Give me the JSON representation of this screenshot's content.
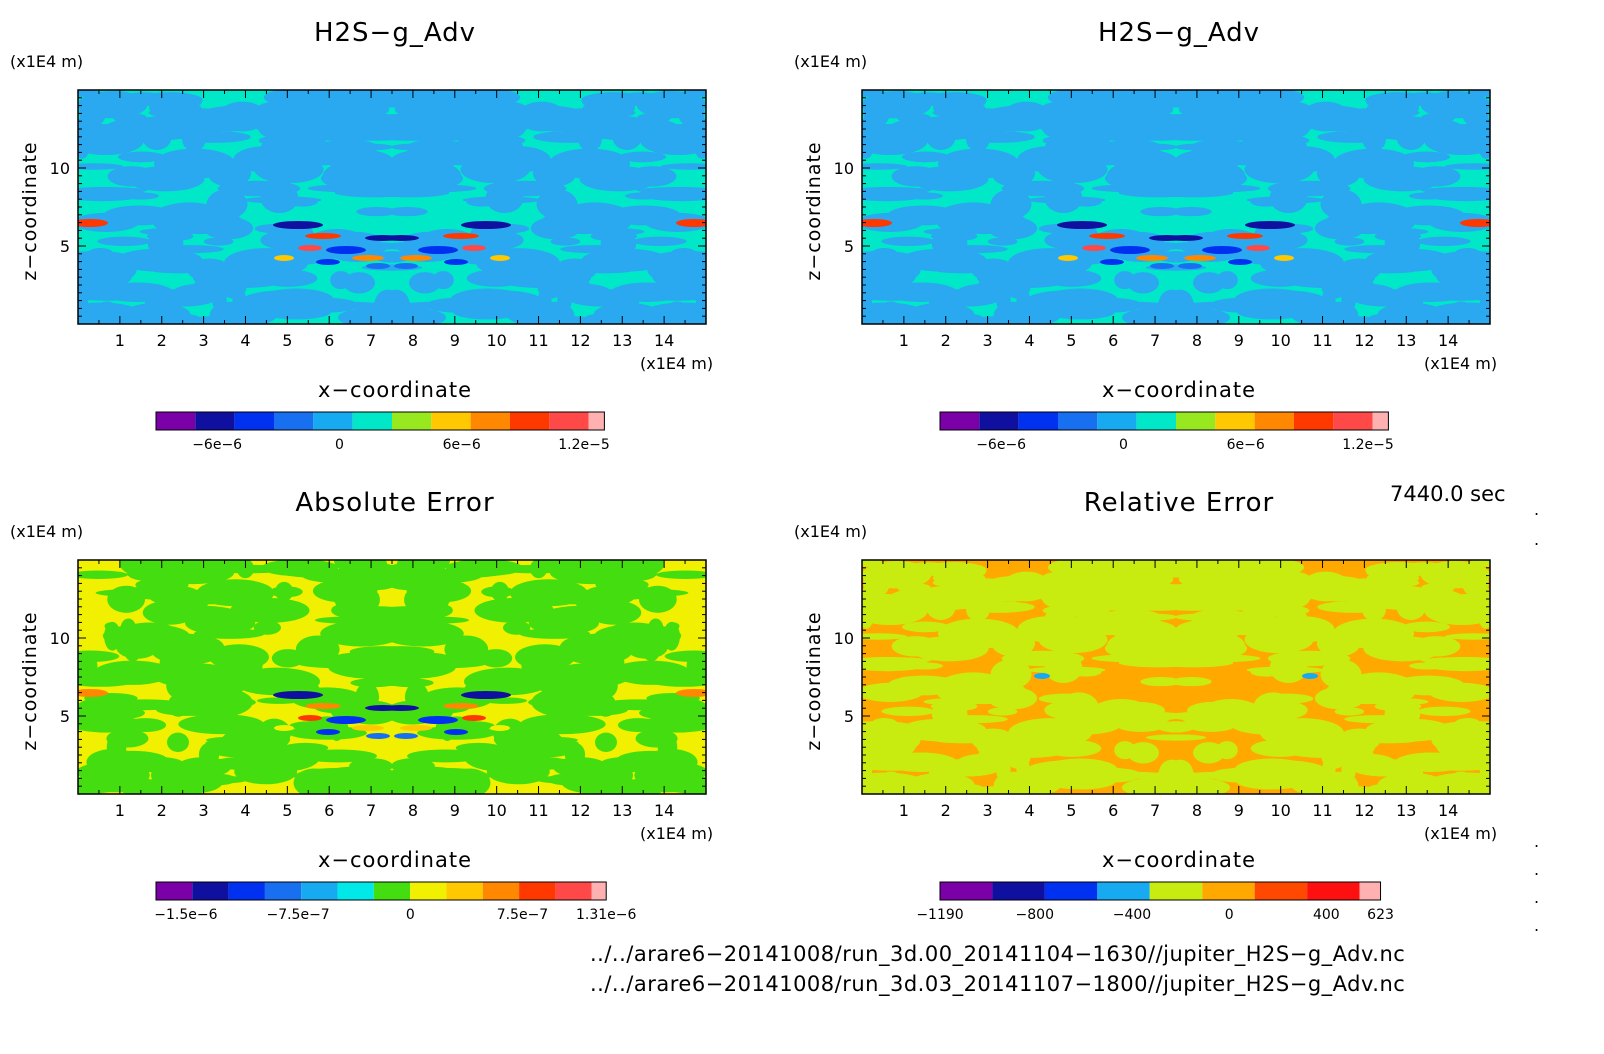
{
  "panels": [
    {
      "title": "H2S−g_Adv",
      "y_unit": "(x1E4 m)",
      "x_unit": "(x1E4 m)",
      "xlabel": "x−coordinate",
      "ylabel": "z−coordinate",
      "colorbar_ticks": [
        {
          "label": "−6e−6",
          "value": -6e-06
        },
        {
          "label": "0",
          "value": 0
        },
        {
          "label": "6e−6",
          "value": 6e-06
        },
        {
          "label": "1.2e−5",
          "value": 1.2e-05
        }
      ]
    },
    {
      "title": "H2S−g_Adv",
      "y_unit": "(x1E4 m)",
      "x_unit": "(x1E4 m)",
      "xlabel": "x−coordinate",
      "ylabel": "z−coordinate",
      "colorbar_ticks": [
        {
          "label": "−6e−6",
          "value": -6e-06
        },
        {
          "label": "0",
          "value": 0
        },
        {
          "label": "6e−6",
          "value": 6e-06
        },
        {
          "label": "1.2e−5",
          "value": 1.2e-05
        }
      ]
    },
    {
      "title": "Absolute Error",
      "y_unit": "(x1E4 m)",
      "x_unit": "(x1E4 m)",
      "xlabel": "x−coordinate",
      "ylabel": "z−coordinate",
      "colorbar_ticks": [
        {
          "label": "−1.5e−6",
          "value": -1.5e-06
        },
        {
          "label": "−7.5e−7",
          "value": -7.5e-07
        },
        {
          "label": "0",
          "value": 0
        },
        {
          "label": "7.5e−7",
          "value": 7.5e-07
        },
        {
          "label": "1.31e−6",
          "value": 1.31e-06
        }
      ]
    },
    {
      "title": "Relative Error",
      "y_unit": "(x1E4 m)",
      "x_unit": "(x1E4 m)",
      "xlabel": "x−coordinate",
      "ylabel": "z−coordinate",
      "colorbar_ticks": [
        {
          "label": "−1190",
          "value": -1190
        },
        {
          "label": "−800",
          "value": -800
        },
        {
          "label": "−400",
          "value": -400
        },
        {
          "label": "0",
          "value": 0
        },
        {
          "label": "400",
          "value": 400
        },
        {
          "label": "623",
          "value": 623
        }
      ]
    }
  ],
  "chart_data": [
    {
      "type": "heatmap",
      "title": "H2S−g_Adv",
      "xlabel": "x−coordinate",
      "ylabel": "z−coordinate",
      "x_ticks": [
        1,
        2,
        3,
        4,
        5,
        6,
        7,
        8,
        9,
        10,
        11,
        12,
        13,
        14
      ],
      "y_ticks": [
        5,
        10
      ],
      "xlim": [
        0,
        15
      ],
      "ylim": [
        0,
        15
      ],
      "colorbar_range": [
        -9e-06,
        1.3e-05
      ],
      "dominant_colors": [
        "#00e8c8",
        "#2aa8f0"
      ],
      "colors": [
        "#7a00a8",
        "#1010a0",
        "#0030f0",
        "#1870f0",
        "#18aaf0",
        "#00e8c8",
        "#98e820",
        "#ffc800",
        "#ff8800",
        "#ff3800",
        "#ff4848",
        "#ffb0b0"
      ]
    },
    {
      "type": "heatmap",
      "title": "H2S−g_Adv",
      "xlabel": "x−coordinate",
      "ylabel": "z−coordinate",
      "x_ticks": [
        1,
        2,
        3,
        4,
        5,
        6,
        7,
        8,
        9,
        10,
        11,
        12,
        13,
        14
      ],
      "y_ticks": [
        5,
        10
      ],
      "xlim": [
        0,
        15
      ],
      "ylim": [
        0,
        15
      ],
      "colorbar_range": [
        -9e-06,
        1.3e-05
      ],
      "dominant_colors": [
        "#00e8c8",
        "#2aa8f0"
      ],
      "colors": [
        "#7a00a8",
        "#1010a0",
        "#0030f0",
        "#1870f0",
        "#18aaf0",
        "#00e8c8",
        "#98e820",
        "#ffc800",
        "#ff8800",
        "#ff3800",
        "#ff4848",
        "#ffb0b0"
      ]
    },
    {
      "type": "heatmap",
      "title": "Absolute Error",
      "xlabel": "x−coordinate",
      "ylabel": "z−coordinate",
      "x_ticks": [
        1,
        2,
        3,
        4,
        5,
        6,
        7,
        8,
        9,
        10,
        11,
        12,
        13,
        14
      ],
      "y_ticks": [
        5,
        10
      ],
      "xlim": [
        0,
        15
      ],
      "ylim": [
        0,
        15
      ],
      "colorbar_range": [
        -1.7e-06,
        1.31e-06
      ],
      "dominant_colors": [
        "#f0f000",
        "#44dd10"
      ],
      "colors": [
        "#7a00a8",
        "#1010a0",
        "#0030f0",
        "#1870f0",
        "#18aaf0",
        "#00e8e8",
        "#44dd10",
        "#f0f000",
        "#ffc800",
        "#ff8800",
        "#ff3800",
        "#ff4848",
        "#ffb0b0"
      ]
    },
    {
      "type": "heatmap",
      "title": "Relative Error",
      "xlabel": "x−coordinate",
      "ylabel": "z−coordinate",
      "x_ticks": [
        1,
        2,
        3,
        4,
        5,
        6,
        7,
        8,
        9,
        10,
        11,
        12,
        13,
        14
      ],
      "y_ticks": [
        5,
        10
      ],
      "xlim": [
        0,
        15
      ],
      "ylim": [
        0,
        15
      ],
      "colorbar_range": [
        -1190,
        623
      ],
      "dominant_colors": [
        "#ffa800",
        "#c8ec10"
      ],
      "colors": [
        "#7a00a8",
        "#1010a0",
        "#0030f0",
        "#18aaf0",
        "#c8ec10",
        "#ffa800",
        "#ff4800",
        "#ff1010",
        "#ffb0b0"
      ]
    }
  ],
  "footer": {
    "time": "7440.0 sec",
    "file1": "../../arare6−20141008/run_3d.00_20141104−1630//jupiter_H2S−g_Adv.nc",
    "file2": "../../arare6−20141008/run_3d.03_20141107−1800//jupiter_H2S−g_Adv.nc"
  }
}
